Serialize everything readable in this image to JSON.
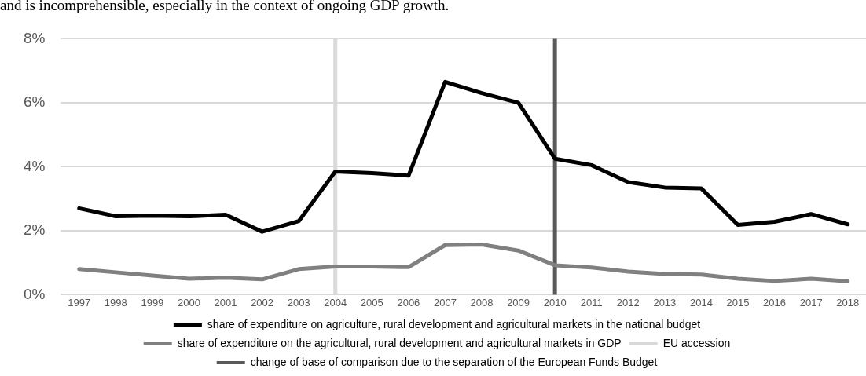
{
  "chart_data": {
    "type": "line",
    "annotations": [
      "and is incomprehensible, especially in the context of ongoing GDP growth."
    ],
    "categories": [
      "1997",
      "1998",
      "1999",
      "2000",
      "2001",
      "2002",
      "2003",
      "2004",
      "2005",
      "2006",
      "2007",
      "2008",
      "2009",
      "2010",
      "2011",
      "2012",
      "2013",
      "2014",
      "2015",
      "2016",
      "2017",
      "2018"
    ],
    "series": [
      {
        "name": "share of expenditure on agriculture, rural development and agricultural markets in the national budget",
        "color": "#000000",
        "values": [
          2.7,
          2.45,
          2.47,
          2.45,
          2.5,
          1.97,
          2.3,
          3.85,
          3.8,
          3.72,
          6.65,
          6.3,
          6.0,
          4.25,
          4.05,
          3.52,
          3.35,
          3.32,
          2.18,
          2.28,
          2.52,
          2.2
        ]
      },
      {
        "name": "share of expenditure on the agricultural, rural development and agricultural markets in GDP",
        "color": "#808080",
        "values": [
          0.8,
          0.7,
          0.6,
          0.5,
          0.53,
          0.48,
          0.8,
          0.88,
          0.88,
          0.86,
          1.55,
          1.57,
          1.38,
          0.92,
          0.85,
          0.72,
          0.65,
          0.63,
          0.5,
          0.43,
          0.5,
          0.42
        ]
      }
    ],
    "ref_lines": [
      {
        "axis": "x",
        "value": "2004",
        "label": "EU accession",
        "color": "#d9d9d9"
      },
      {
        "axis": "x",
        "value": "2010",
        "label": "change of base of comparison due to the separation of the European Funds Budget",
        "color": "#595959"
      }
    ],
    "ylim": [
      0,
      8
    ],
    "yticks": [
      {
        "value": 0,
        "label": "0%"
      },
      {
        "value": 2,
        "label": "2%"
      },
      {
        "value": 4,
        "label": "4%"
      },
      {
        "value": 6,
        "label": "6%"
      },
      {
        "value": 8,
        "label": "8%"
      }
    ],
    "grid": "y",
    "legend": "bottom",
    "marker": "none",
    "line_style": "solid"
  }
}
